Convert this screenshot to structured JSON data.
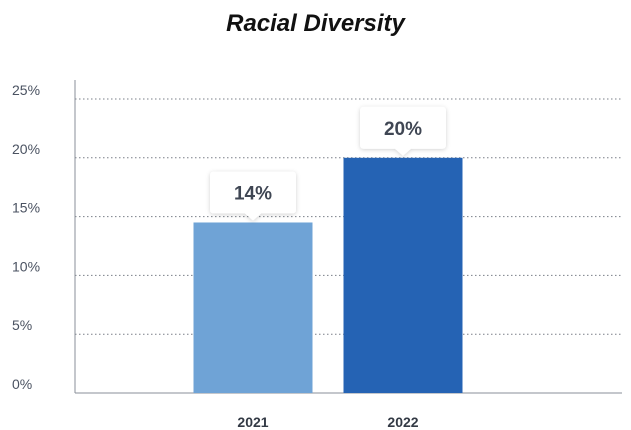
{
  "chart_data": {
    "type": "bar",
    "title": "Racial Diversity",
    "xlabel": "",
    "ylabel": "",
    "categories": [
      "2021",
      "2022"
    ],
    "values": [
      14.5,
      20
    ],
    "data_labels": [
      "14%",
      "20%"
    ],
    "bar_colors": [
      "#6fa3d6",
      "#2563b4"
    ],
    "ylim": [
      0,
      25
    ],
    "yticks": [
      0,
      5,
      10,
      15,
      20,
      25
    ],
    "ytick_labels": [
      "0%",
      "5%",
      "10%",
      "15%",
      "20%",
      "25%"
    ],
    "grid": true
  }
}
